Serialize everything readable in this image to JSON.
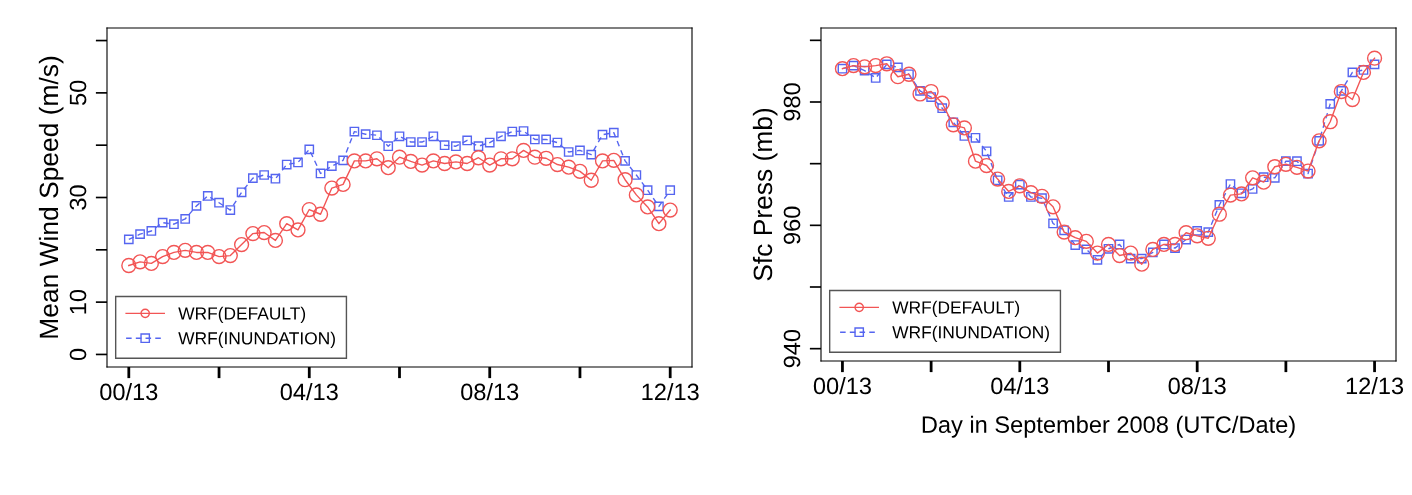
{
  "chart_data": [
    {
      "type": "line",
      "ylabel": "Mean Wind Speed (m/s)",
      "x": [
        "2008-09-13T00:00",
        "2008-09-13T00:15",
        "2008-09-13T00:30",
        "2008-09-13T00:45",
        "2008-09-13T01:00",
        "2008-09-13T01:15",
        "2008-09-13T01:30",
        "2008-09-13T01:45",
        "2008-09-13T02:00",
        "2008-09-13T02:15",
        "2008-09-13T02:30",
        "2008-09-13T02:45",
        "2008-09-13T03:00",
        "2008-09-13T03:15",
        "2008-09-13T03:30",
        "2008-09-13T03:45",
        "2008-09-13T04:00",
        "2008-09-13T04:15",
        "2008-09-13T04:30",
        "2008-09-13T04:45",
        "2008-09-13T05:00",
        "2008-09-13T05:15",
        "2008-09-13T05:30",
        "2008-09-13T05:45",
        "2008-09-13T06:00",
        "2008-09-13T06:15",
        "2008-09-13T06:30",
        "2008-09-13T06:45",
        "2008-09-13T07:00",
        "2008-09-13T07:15",
        "2008-09-13T07:30",
        "2008-09-13T07:45",
        "2008-09-13T08:00",
        "2008-09-13T08:15",
        "2008-09-13T08:30",
        "2008-09-13T08:45",
        "2008-09-13T09:00",
        "2008-09-13T09:15",
        "2008-09-13T09:30",
        "2008-09-13T09:45",
        "2008-09-13T10:00",
        "2008-09-13T10:15",
        "2008-09-13T10:30",
        "2008-09-13T10:45",
        "2008-09-13T11:00",
        "2008-09-13T11:15",
        "2008-09-13T11:30",
        "2008-09-13T11:45",
        "2008-09-13T12:00"
      ],
      "series": [
        {
          "name": "WRF(DEFAULT)",
          "color": "#f25555",
          "marker": "circle",
          "line_style": "solid",
          "values": [
            17.0,
            17.7,
            17.4,
            18.7,
            19.5,
            19.9,
            19.5,
            19.5,
            18.7,
            18.9,
            21.0,
            23.1,
            23.3,
            21.8,
            25.0,
            23.8,
            27.7,
            26.8,
            31.8,
            32.5,
            37.0,
            37.0,
            37.4,
            35.7,
            37.7,
            36.9,
            36.2,
            37.0,
            36.5,
            36.8,
            36.5,
            37.6,
            36.2,
            37.4,
            37.4,
            39.0,
            37.7,
            37.5,
            36.3,
            35.8,
            35.0,
            33.3,
            37.0,
            37.1,
            33.4,
            30.5,
            28.2,
            25.0,
            27.6
          ]
        },
        {
          "name": "WRF(INUNDATION)",
          "color": "#5565f0",
          "marker": "square",
          "line_style": "dashed",
          "values": [
            22.0,
            23.0,
            23.6,
            25.2,
            24.9,
            25.9,
            28.4,
            30.3,
            29.0,
            27.6,
            31.0,
            33.7,
            34.3,
            33.6,
            36.3,
            36.7,
            39.2,
            34.6,
            36.0,
            37.1,
            42.6,
            42.1,
            41.9,
            39.8,
            41.7,
            40.6,
            40.6,
            41.7,
            40.0,
            39.8,
            40.9,
            39.8,
            40.5,
            41.7,
            42.6,
            42.7,
            41.1,
            41.1,
            40.5,
            38.7,
            39.0,
            38.2,
            42.0,
            42.4,
            37.0,
            34.3,
            31.4,
            28.3,
            31.4
          ]
        }
      ],
      "xlim": [
        "2008-09-12T23:31",
        "2008-09-13T12:29"
      ],
      "xticks": [
        {
          "value": "2008-09-13T00:00",
          "label": "00/13"
        },
        {
          "value": "2008-09-13T02:00",
          "label": null
        },
        {
          "value": "2008-09-13T04:00",
          "label": "04/13"
        },
        {
          "value": "2008-09-13T06:00",
          "label": null
        },
        {
          "value": "2008-09-13T08:00",
          "label": "08/13"
        },
        {
          "value": "2008-09-13T10:00",
          "label": null
        },
        {
          "value": "2008-09-13T12:00",
          "label": "12/13"
        }
      ],
      "ylim": [
        -2.4,
        62.4
      ],
      "yticks": [
        0,
        10,
        {
          "value": 20,
          "label": null
        },
        30,
        {
          "value": 40,
          "label": null
        },
        50,
        {
          "value": 60,
          "label": null
        }
      ],
      "legend": "bottom left",
      "grid": false
    },
    {
      "type": "line",
      "ylabel": "Sfc Press (mb)",
      "xlabel": "Day in September 2008 (UTC/Date)",
      "x": [
        "2008-09-13T00:00",
        "2008-09-13T00:15",
        "2008-09-13T00:30",
        "2008-09-13T00:45",
        "2008-09-13T01:00",
        "2008-09-13T01:15",
        "2008-09-13T01:30",
        "2008-09-13T01:45",
        "2008-09-13T02:00",
        "2008-09-13T02:15",
        "2008-09-13T02:30",
        "2008-09-13T02:45",
        "2008-09-13T03:00",
        "2008-09-13T03:15",
        "2008-09-13T03:30",
        "2008-09-13T03:45",
        "2008-09-13T04:00",
        "2008-09-13T04:15",
        "2008-09-13T04:30",
        "2008-09-13T04:45",
        "2008-09-13T05:00",
        "2008-09-13T05:15",
        "2008-09-13T05:30",
        "2008-09-13T05:45",
        "2008-09-13T06:00",
        "2008-09-13T06:15",
        "2008-09-13T06:30",
        "2008-09-13T06:45",
        "2008-09-13T07:00",
        "2008-09-13T07:15",
        "2008-09-13T07:30",
        "2008-09-13T07:45",
        "2008-09-13T08:00",
        "2008-09-13T08:15",
        "2008-09-13T08:30",
        "2008-09-13T08:45",
        "2008-09-13T09:00",
        "2008-09-13T09:15",
        "2008-09-13T09:30",
        "2008-09-13T09:45",
        "2008-09-13T10:00",
        "2008-09-13T10:15",
        "2008-09-13T10:30",
        "2008-09-13T10:45",
        "2008-09-13T11:00",
        "2008-09-13T11:15",
        "2008-09-13T11:30",
        "2008-09-13T11:45",
        "2008-09-13T12:00"
      ],
      "series": [
        {
          "name": "WRF(DEFAULT)",
          "color": "#f25555",
          "marker": "circle",
          "line_style": "solid",
          "values": [
            985.4,
            985.9,
            985.7,
            985.9,
            986.2,
            984.1,
            984.5,
            981.3,
            981.7,
            979.8,
            976.3,
            975.8,
            970.4,
            969.7,
            967.5,
            965.5,
            966.4,
            965.3,
            964.7,
            963.0,
            958.9,
            958.0,
            957.4,
            955.5,
            956.9,
            955.1,
            955.5,
            953.7,
            956.1,
            956.9,
            956.9,
            958.8,
            958.3,
            957.9,
            961.8,
            964.9,
            965.1,
            967.7,
            967.0,
            969.5,
            969.9,
            969.4,
            968.8,
            973.7,
            976.8,
            981.7,
            980.4,
            984.8,
            987.1
          ]
        },
        {
          "name": "WRF(INUNDATION)",
          "color": "#5565f0",
          "marker": "square",
          "line_style": "dashed",
          "values": [
            985.4,
            985.9,
            985.1,
            983.9,
            986.1,
            985.6,
            984.5,
            981.8,
            980.8,
            979.0,
            976.7,
            974.5,
            974.2,
            972.0,
            967.3,
            964.6,
            966.6,
            964.6,
            964.4,
            960.3,
            959.2,
            956.8,
            956.1,
            954.4,
            956.2,
            956.9,
            954.6,
            954.6,
            955.6,
            956.9,
            956.3,
            957.7,
            959.1,
            958.9,
            963.3,
            966.7,
            965.2,
            965.9,
            967.8,
            967.7,
            970.4,
            970.4,
            968.4,
            973.7,
            979.7,
            981.8,
            984.8,
            985.2,
            986.1
          ]
        }
      ],
      "xlim": [
        "2008-09-12T23:31",
        "2008-09-13T12:29"
      ],
      "xticks": [
        {
          "value": "2008-09-13T00:00",
          "label": "00/13"
        },
        {
          "value": "2008-09-13T02:00",
          "label": null
        },
        {
          "value": "2008-09-13T04:00",
          "label": "04/13"
        },
        {
          "value": "2008-09-13T06:00",
          "label": null
        },
        {
          "value": "2008-09-13T08:00",
          "label": "08/13"
        },
        {
          "value": "2008-09-13T10:00",
          "label": null
        },
        {
          "value": "2008-09-13T12:00",
          "label": "12/13"
        }
      ],
      "ylim": [
        938,
        992
      ],
      "yticks": [
        940,
        {
          "value": 950,
          "label": null
        },
        960,
        {
          "value": 970,
          "label": null
        },
        980,
        {
          "value": 990,
          "label": null
        }
      ],
      "legend": "bottom left",
      "grid": false
    }
  ]
}
